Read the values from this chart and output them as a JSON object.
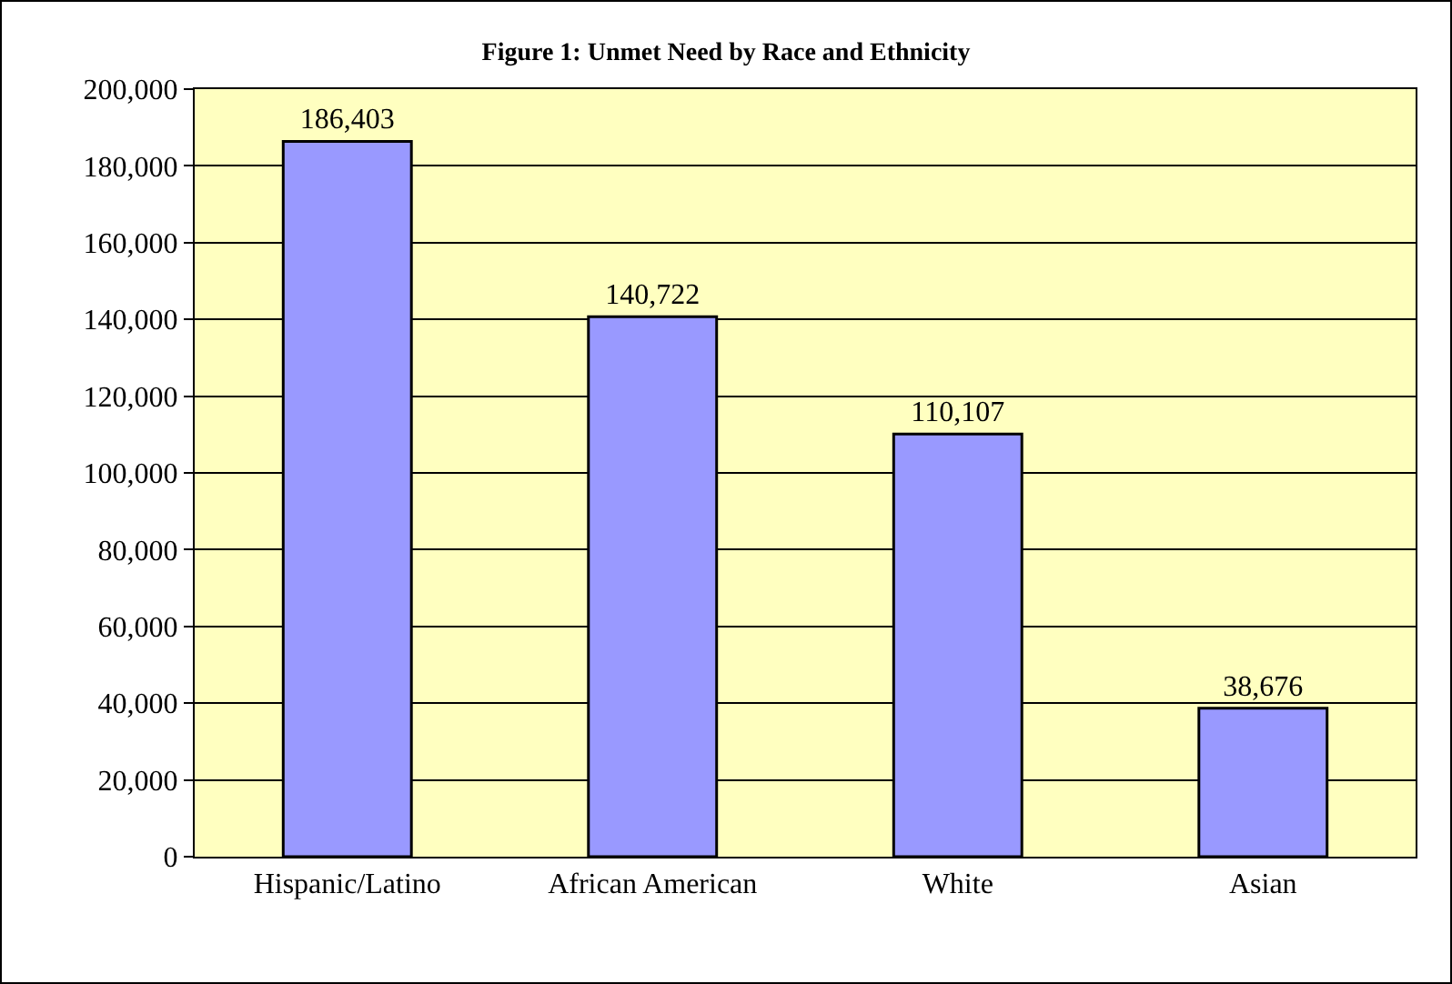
{
  "chart_data": {
    "type": "bar",
    "title": "Figure 1: Unmet Need by Race and Ethnicity",
    "categories": [
      "Hispanic/Latino",
      "African American",
      "White",
      "Asian"
    ],
    "values": [
      186403,
      140722,
      110107,
      38676
    ],
    "color": "#9999ff",
    "ylim": [
      0,
      200000
    ],
    "yticks": [
      {
        "value": 0,
        "label": "0"
      },
      {
        "value": 20000,
        "label": "20,000"
      },
      {
        "value": 40000,
        "label": "40,000"
      },
      {
        "value": 60000,
        "label": "60,000"
      },
      {
        "value": 80000,
        "label": "80,000"
      },
      {
        "value": 100000,
        "label": "100,000"
      },
      {
        "value": 120000,
        "label": "120,000"
      },
      {
        "value": 140000,
        "label": "140,000"
      },
      {
        "value": 160000,
        "label": "160,000"
      },
      {
        "value": 180000,
        "label": "180,000"
      },
      {
        "value": 200000,
        "label": "200,000"
      }
    ],
    "grid": "y",
    "value_labels": [
      "186,403",
      "140,722",
      "110,107",
      "38,676"
    ]
  }
}
